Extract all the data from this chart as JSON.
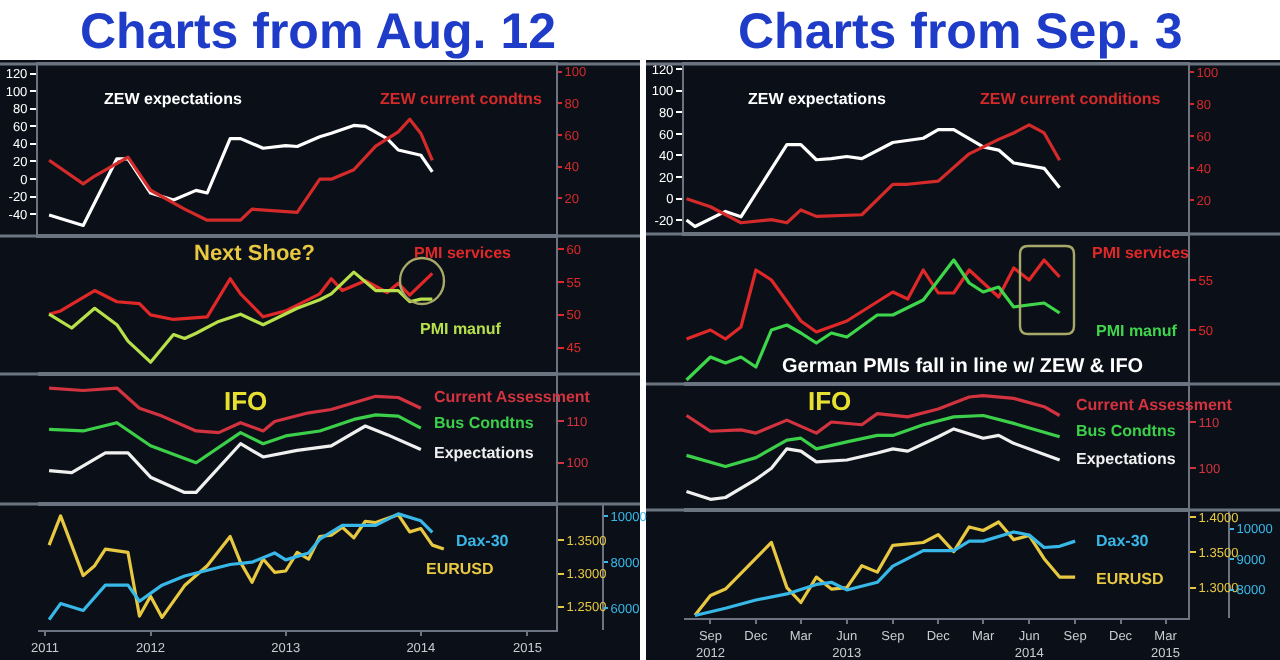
{
  "chart_data": [
    {
      "type": "line",
      "title": "Charts from Aug. 12",
      "xlim": [
        "2011-09-01",
        "2015-07-01"
      ],
      "ylim": [
        -65,
        131
      ],
      "yticks": [
        -40,
        -20,
        0,
        20,
        40,
        60,
        80,
        100,
        120
      ],
      "y2lim": [
        -4,
        105
      ],
      "y2ticks": [
        20,
        40,
        60,
        80,
        100
      ],
      "tick_labels": "y",
      "series": [
        {
          "name": "ZEW expectations",
          "color": "#ffffff",
          "x": [
            "2011-10",
            "2012-01",
            "2012-04",
            "2012-05",
            "2012-07",
            "2012-09",
            "2012-11",
            "2012-12",
            "2013-02",
            "2013-03",
            "2013-05",
            "2013-07",
            "2013-08",
            "2013-10",
            "2013-11",
            "2014-01",
            "2014-02",
            "2014-04",
            "2014-05",
            "2014-07",
            "2014-08"
          ],
          "values": [
            -41,
            -53,
            23,
            23,
            -16,
            -24,
            -13,
            -16,
            46,
            46,
            35,
            38,
            37,
            48,
            52,
            61,
            60,
            46,
            33,
            27,
            8
          ]
        },
        {
          "name": "ZEW current condtns",
          "color": "#d42a2a",
          "axis": "y2",
          "x": [
            "2011-10",
            "2012-01",
            "2012-02",
            "2012-05",
            "2012-07",
            "2012-10",
            "2012-12",
            "2013-03",
            "2013-04",
            "2013-08",
            "2013-10",
            "2013-11",
            "2014-01",
            "2014-03",
            "2014-05",
            "2014-06",
            "2014-07",
            "2014-08"
          ],
          "values": [
            44,
            29,
            34,
            46,
            25,
            13,
            6,
            6,
            13,
            11,
            32,
            32,
            38,
            53,
            62,
            70,
            61,
            44
          ]
        }
      ]
    },
    {
      "type": "line",
      "xlim": [
        "2011-09-01",
        "2015-07-01"
      ],
      "ylim": [
        41,
        62
      ],
      "yticks": [
        45,
        50,
        55,
        60
      ],
      "tick_labels": "y",
      "annotations": [
        "Next Shoe?"
      ],
      "series": [
        {
          "name": "PMI services",
          "color": "#e02828",
          "x": [
            "2011-10",
            "2011-11",
            "2012-02",
            "2012-04",
            "2012-06",
            "2012-07",
            "2012-09",
            "2012-12",
            "2013-02",
            "2013-03",
            "2013-05",
            "2013-07",
            "2013-10",
            "2013-11",
            "2013-12",
            "2014-02",
            "2014-04",
            "2014-05",
            "2014-06",
            "2014-08"
          ],
          "values": [
            50.1,
            50.6,
            53.7,
            52.0,
            51.7,
            50.0,
            49.3,
            49.7,
            55.5,
            53.2,
            49.7,
            50.6,
            53.2,
            55.5,
            53.7,
            55.2,
            53.4,
            54.8,
            53.0,
            56.3
          ]
        },
        {
          "name": "PMI manuf",
          "color": "#b8e04a",
          "x": [
            "2011-10",
            "2011-12",
            "2012-02",
            "2012-04",
            "2012-05",
            "2012-07",
            "2012-09",
            "2012-10",
            "2012-11",
            "2013-01",
            "2013-03",
            "2013-05",
            "2013-08",
            "2013-10",
            "2013-11",
            "2014-01",
            "2014-03",
            "2014-05",
            "2014-06",
            "2014-07",
            "2014-08"
          ],
          "values": [
            50.1,
            48.0,
            51.0,
            48.5,
            46.0,
            42.8,
            47.0,
            46.4,
            47.2,
            49.0,
            50.1,
            48.5,
            51.0,
            52.3,
            53.2,
            56.5,
            53.7,
            53.7,
            52.0,
            52.4,
            52.4
          ]
        }
      ]
    },
    {
      "type": "line",
      "xlim": [
        "2011-09-01",
        "2015-07-01"
      ],
      "ylim": [
        90,
        121.5
      ],
      "yticks": [
        100,
        110
      ],
      "tick_labels": "y",
      "annotations": [
        "IFO"
      ],
      "series": [
        {
          "name": "Current Assessment",
          "color": "#d2333f",
          "x": [
            "2011-10",
            "2012-01",
            "2012-04",
            "2012-06",
            "2012-08",
            "2012-11",
            "2013-01",
            "2013-03",
            "2013-05",
            "2013-06",
            "2013-09",
            "2013-11",
            "2014-03",
            "2014-05",
            "2014-07"
          ],
          "values": [
            118.1,
            117.5,
            118.1,
            113.2,
            111.3,
            107.7,
            107.3,
            109.7,
            107.7,
            110.0,
            112.1,
            112.9,
            116.1,
            115.8,
            113.2
          ]
        },
        {
          "name": "Bus Condtns",
          "color": "#3ccf4a",
          "x": [
            "2011-10",
            "2012-01",
            "2012-04",
            "2012-07",
            "2012-11",
            "2013-03",
            "2013-05",
            "2013-07",
            "2013-10",
            "2014-01",
            "2014-03",
            "2014-05",
            "2014-07"
          ],
          "values": [
            108.1,
            107.7,
            109.7,
            104.1,
            100.0,
            107.3,
            104.6,
            106.5,
            107.7,
            110.5,
            111.6,
            111.3,
            108.4
          ]
        },
        {
          "name": "Expectations",
          "color": "#f0f0f0",
          "x": [
            "2011-10",
            "2011-12",
            "2012-03",
            "2012-05",
            "2012-07",
            "2012-10",
            "2012-11",
            "2013-03",
            "2013-05",
            "2013-08",
            "2013-11",
            "2014-02",
            "2014-04",
            "2014-07"
          ],
          "values": [
            98.1,
            97.6,
            102.4,
            102.4,
            96.5,
            92.8,
            92.8,
            104.6,
            101.4,
            103.0,
            104.1,
            108.9,
            106.8,
            103.2
          ]
        }
      ]
    },
    {
      "type": "line",
      "xlim": [
        "2011-09-01",
        "2015-07-01"
      ],
      "xticks": [
        {
          "value": "2011-09-20",
          "label": "2011"
        },
        {
          "value": "2012-07-01",
          "label": "2012"
        },
        {
          "value": "2013-07-01",
          "label": "2013"
        },
        {
          "value": "2014-07-01",
          "label": "2014"
        },
        {
          "value": "2015-04-15",
          "label": "2015"
        }
      ],
      "ylim": [
        1.215,
        1.405
      ],
      "yticks": [
        {
          "value": 1.25,
          "label": "1.2500"
        },
        {
          "value": 1.3,
          "label": "1.3000"
        },
        {
          "value": 1.35,
          "label": "1.3500"
        }
      ],
      "y2lim": [
        5050,
        10530
      ],
      "y2ticks": [
        6000,
        8000,
        10000
      ],
      "series": [
        {
          "name": "EURUSD",
          "color": "#e8c840",
          "x": [
            "2011-10",
            "2011-11",
            "2012-01",
            "2012-02",
            "2012-03",
            "2012-05",
            "2012-06",
            "2012-07",
            "2012-08",
            "2012-10",
            "2012-12",
            "2013-02",
            "2013-03",
            "2013-04",
            "2013-05",
            "2013-06",
            "2013-07",
            "2013-08",
            "2013-09",
            "2013-10",
            "2013-11",
            "2013-12",
            "2014-01",
            "2014-02",
            "2014-03",
            "2014-05",
            "2014-06",
            "2014-07",
            "2014-08",
            "2014-09"
          ],
          "values": [
            1.343,
            1.387,
            1.297,
            1.312,
            1.337,
            1.332,
            1.236,
            1.266,
            1.234,
            1.282,
            1.312,
            1.356,
            1.317,
            1.287,
            1.322,
            1.302,
            1.304,
            1.332,
            1.322,
            1.356,
            1.358,
            1.37,
            1.354,
            1.379,
            1.377,
            1.389,
            1.363,
            1.368,
            1.343,
            1.337
          ]
        },
        {
          "name": "Dax-30",
          "color": "#38b8e8",
          "axis": "y2",
          "x": [
            "2011-10",
            "2011-11",
            "2012-01",
            "2012-03",
            "2012-05",
            "2012-06",
            "2012-08",
            "2012-10",
            "2013-02",
            "2013-04",
            "2013-06",
            "2013-07",
            "2013-09",
            "2013-10",
            "2013-12",
            "2014-02",
            "2014-03",
            "2014-05",
            "2014-07",
            "2014-08"
          ],
          "values": [
            5500,
            6200,
            5900,
            7000,
            7000,
            6300,
            7000,
            7400,
            7900,
            8000,
            8400,
            8100,
            8400,
            9000,
            9600,
            9600,
            9600,
            10100,
            9800,
            9300
          ]
        }
      ]
    },
    {
      "type": "line",
      "title": "Charts from Sep. 3",
      "xlim": [
        "2012-07-10",
        "2015-04-15"
      ],
      "ylim": [
        -33,
        125
      ],
      "yticks": [
        -20,
        0,
        20,
        40,
        60,
        80,
        100,
        120
      ],
      "y2lim": [
        -1,
        105
      ],
      "y2ticks": [
        20,
        40,
        60,
        80,
        100
      ],
      "tick_labels": "y",
      "series": [
        {
          "name": "ZEW expectations",
          "color": "#ffffff",
          "x": [
            "2012-07-15",
            "2012-08",
            "2012-10",
            "2012-11",
            "2013-02",
            "2013-03",
            "2013-04",
            "2013-05",
            "2013-06",
            "2013-07",
            "2013-09",
            "2013-11",
            "2013-12",
            "2014-01",
            "2014-03",
            "2014-04",
            "2014-05",
            "2014-07",
            "2014-08"
          ],
          "values": [
            -20,
            -26,
            -12,
            -17,
            50,
            50,
            36,
            37,
            39,
            37,
            52,
            56,
            64,
            64,
            48,
            45,
            33,
            28,
            10
          ]
        },
        {
          "name": "ZEW current conditions",
          "color": "#d42a2a",
          "axis": "y2",
          "x": [
            "2012-07-15",
            "2012-09",
            "2012-11",
            "2013-01",
            "2013-02",
            "2013-03",
            "2013-04",
            "2013-07",
            "2013-09",
            "2013-10",
            "2013-12",
            "2014-02",
            "2014-04",
            "2014-05",
            "2014-06",
            "2014-07",
            "2014-08"
          ],
          "values": [
            21,
            16,
            6,
            8,
            6,
            14,
            10,
            11,
            30,
            30,
            32,
            49,
            58,
            62,
            67,
            62,
            45
          ]
        }
      ]
    },
    {
      "type": "line",
      "xlim": [
        "2012-07-10",
        "2015-04-15"
      ],
      "ylim": [
        44.6,
        59.6
      ],
      "yticks": [
        50,
        55
      ],
      "tick_labels": "y",
      "annotations": [
        "German PMIs fall in line w/ ZEW & IFO"
      ],
      "series": [
        {
          "name": "PMI services",
          "color": "#e02828",
          "x": [
            "2012-07-15",
            "2012-09",
            "2012-10",
            "2012-11",
            "2012-12",
            "2013-01",
            "2013-03",
            "2013-04",
            "2013-06",
            "2013-09",
            "2013-10",
            "2013-11",
            "2013-12",
            "2014-01",
            "2014-02",
            "2014-04",
            "2014-05",
            "2014-06",
            "2014-07",
            "2014-08"
          ],
          "values": [
            49.1,
            50,
            49.1,
            50.3,
            56,
            55,
            50.9,
            49.8,
            50.9,
            53.8,
            53.1,
            56,
            53.7,
            53.7,
            56,
            53.3,
            56.2,
            55,
            57,
            55.3
          ]
        },
        {
          "name": "PMI manuf",
          "color": "#3ed64a",
          "x": [
            "2012-07-15",
            "2012-09",
            "2012-10",
            "2012-11",
            "2012-12",
            "2013-01",
            "2013-02",
            "2013-03",
            "2013-04",
            "2013-05",
            "2013-06",
            "2013-08",
            "2013-09",
            "2013-11",
            "2014-01",
            "2014-02",
            "2014-03",
            "2014-04",
            "2014-05",
            "2014-07",
            "2014-08"
          ],
          "values": [
            45,
            47.3,
            46.7,
            47.3,
            46.3,
            50,
            50.5,
            49.7,
            48.7,
            49.7,
            49.3,
            51.5,
            51.5,
            53,
            57,
            54.7,
            53.8,
            54.3,
            52.3,
            52.7,
            51.7
          ]
        }
      ]
    },
    {
      "type": "line",
      "xlim": [
        "2012-07-10",
        "2015-04-15"
      ],
      "ylim": [
        91,
        118.2
      ],
      "yticks": [
        100,
        110
      ],
      "tick_labels": "y",
      "annotations": [
        "IFO"
      ],
      "series": [
        {
          "name": "Current Assessment",
          "color": "#d2333f",
          "x": [
            "2012-07-15",
            "2012-09",
            "2012-11",
            "2012-12",
            "2013-02",
            "2013-04",
            "2013-05",
            "2013-07",
            "2013-08",
            "2013-10",
            "2013-12",
            "2014-02",
            "2014-03",
            "2014-05",
            "2014-07",
            "2014-08"
          ],
          "values": [
            111.4,
            108,
            108.3,
            107.6,
            110.4,
            107.6,
            110,
            109.4,
            111.8,
            111.1,
            112.8,
            115.4,
            115.7,
            115.1,
            113.3,
            111.4
          ]
        },
        {
          "name": "Bus Condtns",
          "color": "#3ccf4a",
          "x": [
            "2012-07-15",
            "2012-10",
            "2012-12",
            "2013-02",
            "2013-03",
            "2013-04",
            "2013-06",
            "2013-08",
            "2013-09",
            "2013-11",
            "2014-01",
            "2014-03",
            "2014-05",
            "2014-08"
          ],
          "values": [
            102.8,
            100.4,
            102.3,
            106.1,
            106.5,
            104.2,
            105.7,
            107.1,
            107.1,
            109.4,
            111.1,
            111.4,
            109.7,
            106.8
          ]
        },
        {
          "name": "Expectations",
          "color": "#f0f0f0",
          "x": [
            "2012-07-15",
            "2012-09",
            "2012-10",
            "2012-12",
            "2013-01",
            "2013-02",
            "2013-03",
            "2013-04",
            "2013-06",
            "2013-08",
            "2013-09",
            "2013-10",
            "2013-12",
            "2014-01",
            "2014-03",
            "2014-04",
            "2014-05",
            "2014-08"
          ],
          "values": [
            95,
            93.3,
            93.7,
            97.6,
            100,
            104.2,
            103.7,
            101.4,
            101.8,
            103.3,
            104.2,
            103.7,
            106.8,
            108.5,
            106.5,
            107.1,
            105.4,
            101.8
          ]
        }
      ]
    },
    {
      "type": "line",
      "xlim": [
        "2012-07-10",
        "2015-04-15"
      ],
      "xticks": [
        {
          "value": "2012-09-01",
          "label": "Sep\n2012"
        },
        {
          "value": "2012-12-01",
          "label": "Dec"
        },
        {
          "value": "2013-03-01",
          "label": "Mar"
        },
        {
          "value": "2013-06-01",
          "label": "Jun\n2013"
        },
        {
          "value": "2013-09-01",
          "label": "Sep"
        },
        {
          "value": "2013-12-01",
          "label": "Dec"
        },
        {
          "value": "2014-03-01",
          "label": "Mar"
        },
        {
          "value": "2014-06-01",
          "label": "Jun\n2014"
        },
        {
          "value": "2014-09-01",
          "label": "Sep"
        },
        {
          "value": "2014-12-01",
          "label": "Dec"
        },
        {
          "value": "2015-03-01",
          "label": "Mar\n2015"
        }
      ],
      "ylim": [
        1.257,
        1.41
      ],
      "yticks": [
        {
          "value": 1.3,
          "label": "1.3000"
        },
        {
          "value": 1.35,
          "label": "1.3500"
        },
        {
          "value": 1.4,
          "label": "1.4000"
        }
      ],
      "y2lim": [
        7070,
        10610
      ],
      "y2ticks": [
        8000,
        9000,
        10000
      ],
      "series": [
        {
          "name": "EURUSD",
          "color": "#e8c840",
          "x": [
            "2012-08",
            "2012-09",
            "2012-10",
            "2013-01",
            "2013-02",
            "2013-03",
            "2013-04",
            "2013-05",
            "2013-06",
            "2013-07",
            "2013-08",
            "2013-09",
            "2013-11",
            "2013-12",
            "2014-01",
            "2014-02",
            "2014-03",
            "2014-04",
            "2014-05",
            "2014-06",
            "2014-07",
            "2014-08",
            "2014-09"
          ],
          "values": [
            1.261,
            1.289,
            1.298,
            1.364,
            1.3,
            1.279,
            1.315,
            1.298,
            1.3,
            1.331,
            1.322,
            1.36,
            1.364,
            1.375,
            1.351,
            1.386,
            1.381,
            1.393,
            1.368,
            1.374,
            1.341,
            1.315,
            1.315
          ]
        },
        {
          "name": "Dax-30",
          "color": "#38b8e8",
          "axis": "y2",
          "x": [
            "2012-08",
            "2012-10",
            "2012-12",
            "2013-02",
            "2013-04",
            "2013-05",
            "2013-06",
            "2013-08",
            "2013-09",
            "2013-11",
            "2014-01",
            "2014-02",
            "2014-03",
            "2014-05",
            "2014-06",
            "2014-07",
            "2014-08",
            "2014-09"
          ],
          "values": [
            7150,
            7390,
            7660,
            7860,
            8170,
            8240,
            7990,
            8240,
            8770,
            9280,
            9280,
            9590,
            9590,
            9890,
            9790,
            9380,
            9420,
            9590
          ]
        }
      ]
    }
  ]
}
